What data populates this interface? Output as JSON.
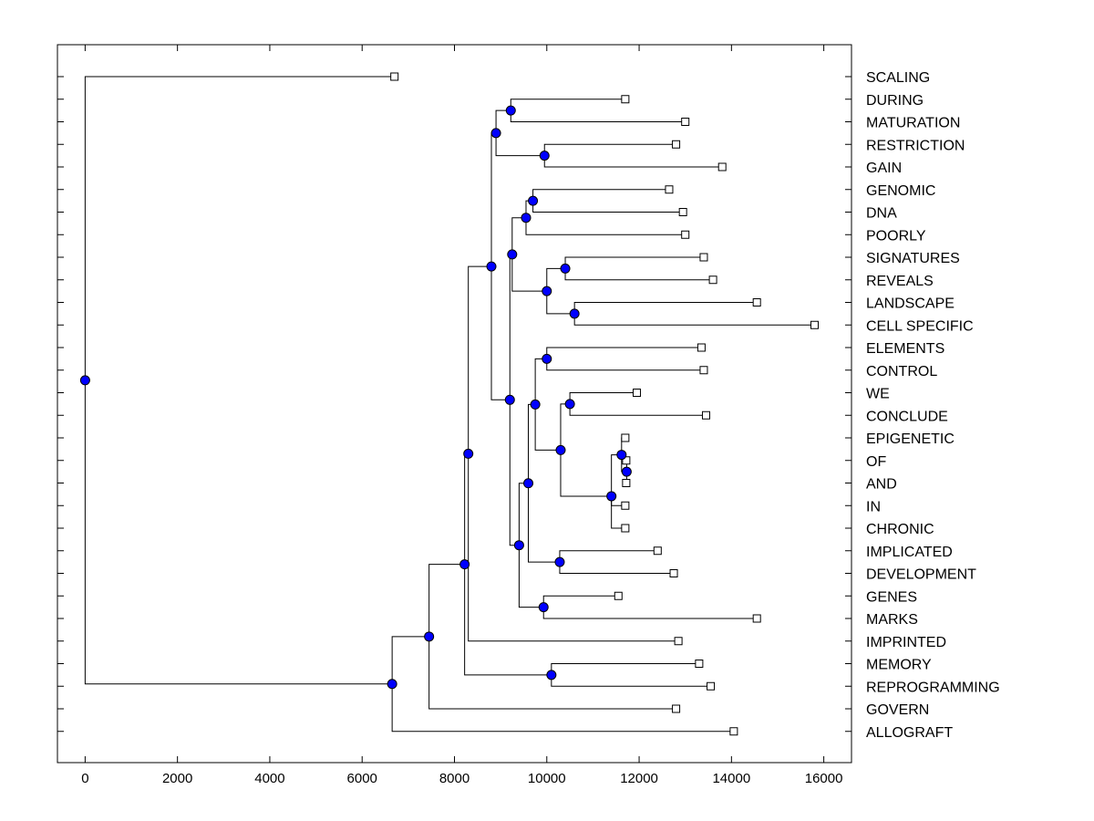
{
  "chart_data": {
    "type": "dendrogram",
    "xlim": [
      -600,
      16600
    ],
    "xticks": [
      0,
      2000,
      4000,
      6000,
      8000,
      10000,
      12000,
      14000,
      16000
    ],
    "colors": {
      "node": "#0000ff",
      "line": "#000000",
      "leaf_fill": "#ffffff"
    },
    "nodes": [
      {
        "id": "SCALING",
        "x": 6700,
        "label": "SCALING"
      },
      {
        "id": "DURING",
        "x": 11700,
        "label": "DURING"
      },
      {
        "id": "MATURATION",
        "x": 13000,
        "label": "MATURATION"
      },
      {
        "id": "RESTRICTION",
        "x": 12800,
        "label": "RESTRICTION"
      },
      {
        "id": "GAIN",
        "x": 13800,
        "label": "GAIN"
      },
      {
        "id": "GENOMIC",
        "x": 12650,
        "label": "GENOMIC"
      },
      {
        "id": "DNA",
        "x": 12950,
        "label": "DNA"
      },
      {
        "id": "POORLY",
        "x": 13000,
        "label": "POORLY"
      },
      {
        "id": "SIGNATURES",
        "x": 13400,
        "label": "SIGNATURES"
      },
      {
        "id": "REVEALS",
        "x": 13600,
        "label": "REVEALS"
      },
      {
        "id": "LANDSCAPE",
        "x": 14550,
        "label": "LANDSCAPE"
      },
      {
        "id": "CELL_SPECIFIC",
        "x": 15800,
        "label": "CELL SPECIFIC"
      },
      {
        "id": "ELEMENTS",
        "x": 13350,
        "label": "ELEMENTS"
      },
      {
        "id": "CONTROL",
        "x": 13400,
        "label": "CONTROL"
      },
      {
        "id": "WE",
        "x": 11950,
        "label": "WE"
      },
      {
        "id": "CONCLUDE",
        "x": 13450,
        "label": "CONCLUDE"
      },
      {
        "id": "EPIGENETIC",
        "x": 11700,
        "label": "EPIGENETIC"
      },
      {
        "id": "OF",
        "x": 11720,
        "label": "OF"
      },
      {
        "id": "AND",
        "x": 11720,
        "label": "AND"
      },
      {
        "id": "IN",
        "x": 11700,
        "label": "IN"
      },
      {
        "id": "CHRONIC",
        "x": 11700,
        "label": "CHRONIC"
      },
      {
        "id": "IMPLICATED",
        "x": 12400,
        "label": "IMPLICATED"
      },
      {
        "id": "DEVELOPMENT",
        "x": 12750,
        "label": "DEVELOPMENT"
      },
      {
        "id": "GENES",
        "x": 11550,
        "label": "GENES"
      },
      {
        "id": "MARKS",
        "x": 14550,
        "label": "MARKS"
      },
      {
        "id": "IMPRINTED",
        "x": 12850,
        "label": "IMPRINTED"
      },
      {
        "id": "MEMORY",
        "x": 13300,
        "label": "MEMORY"
      },
      {
        "id": "REPROGRAMMING",
        "x": 13550,
        "label": "REPROGRAMMING"
      },
      {
        "id": "GOVERN",
        "x": 12800,
        "label": "GOVERN"
      },
      {
        "id": "ALLOGRAFT",
        "x": 14050,
        "label": "ALLOGRAFT"
      },
      {
        "id": "n_during_mat",
        "x": 9220,
        "children": [
          "DURING",
          "MATURATION"
        ]
      },
      {
        "id": "n_restr_gain",
        "x": 9950,
        "children": [
          "RESTRICTION",
          "GAIN"
        ]
      },
      {
        "id": "n_top4",
        "x": 8900,
        "children": [
          "n_during_mat",
          "n_restr_gain"
        ]
      },
      {
        "id": "n_genomic_dna",
        "x": 9700,
        "children": [
          "GENOMIC",
          "DNA"
        ]
      },
      {
        "id": "n_gdp",
        "x": 9550,
        "children": [
          "n_genomic_dna",
          "POORLY"
        ]
      },
      {
        "id": "n_sig_rev",
        "x": 10400,
        "children": [
          "SIGNATURES",
          "REVEALS"
        ]
      },
      {
        "id": "n_land_cell",
        "x": 10600,
        "children": [
          "LANDSCAPE",
          "CELL_SPECIFIC"
        ]
      },
      {
        "id": "n_srlc",
        "x": 10000,
        "children": [
          "n_sig_rev",
          "n_land_cell"
        ]
      },
      {
        "id": "n_gdpsrlc",
        "x": 9250,
        "children": [
          "n_gdp",
          "n_srlc"
        ]
      },
      {
        "id": "n_elem_ctrl",
        "x": 10000,
        "children": [
          "ELEMENTS",
          "CONTROL"
        ]
      },
      {
        "id": "n_we_concl",
        "x": 10500,
        "children": [
          "WE",
          "CONCLUDE"
        ]
      },
      {
        "id": "n_of_and",
        "x": 11730,
        "children": [
          "OF",
          "AND"
        ]
      },
      {
        "id": "n_epi_ofand",
        "x": 11620,
        "children": [
          "EPIGENETIC",
          "n_of_and"
        ]
      },
      {
        "id": "n_small5",
        "x": 11400,
        "children": [
          "n_epi_ofand",
          "IN",
          "CHRONIC"
        ]
      },
      {
        "id": "n_wc_small",
        "x": 10300,
        "children": [
          "n_we_concl",
          "n_small5"
        ]
      },
      {
        "id": "n_ec_wcs",
        "x": 9750,
        "children": [
          "n_elem_ctrl",
          "n_wc_small"
        ]
      },
      {
        "id": "n_impl_dev",
        "x": 10280,
        "children": [
          "IMPLICATED",
          "DEVELOPMENT"
        ]
      },
      {
        "id": "n_ecw_id",
        "x": 9600,
        "children": [
          "n_ec_wcs",
          "n_impl_dev"
        ]
      },
      {
        "id": "n_genes_marks",
        "x": 9930,
        "children": [
          "GENES",
          "MARKS"
        ]
      },
      {
        "id": "n_mid",
        "x": 9400,
        "children": [
          "n_ecw_id",
          "n_genes_marks"
        ]
      },
      {
        "id": "n_upper",
        "x": 9200,
        "children": [
          "n_gdpsrlc",
          "n_mid"
        ]
      },
      {
        "id": "n_big",
        "x": 8800,
        "children": [
          "n_top4",
          "n_upper"
        ]
      },
      {
        "id": "n_big_impr",
        "x": 8300,
        "children": [
          "n_big",
          "IMPRINTED"
        ]
      },
      {
        "id": "n_mem_repr",
        "x": 10100,
        "children": [
          "MEMORY",
          "REPROGRAMMING"
        ]
      },
      {
        "id": "n_bim_mr",
        "x": 8220,
        "children": [
          "n_big_impr",
          "n_mem_repr"
        ]
      },
      {
        "id": "n_govern",
        "x": 7450,
        "children": [
          "n_bim_mr",
          "GOVERN"
        ]
      },
      {
        "id": "n_allograft",
        "x": 6650,
        "children": [
          "n_govern",
          "ALLOGRAFT"
        ]
      },
      {
        "id": "n_root",
        "x": 0,
        "children": [
          "SCALING",
          "n_allograft"
        ]
      }
    ],
    "root": "n_root"
  }
}
